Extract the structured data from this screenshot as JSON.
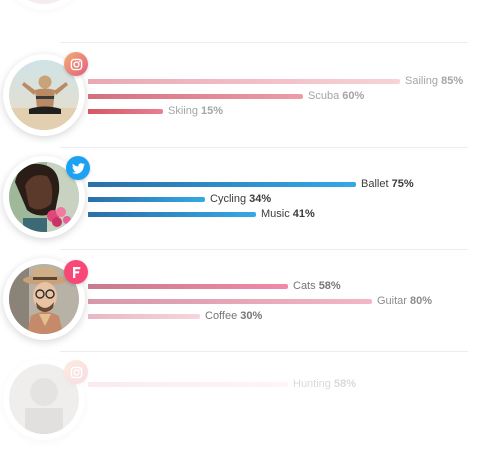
{
  "profiles": [
    {
      "network": "instagram",
      "icon": "instagram-icon",
      "faded": "top",
      "skills": []
    },
    {
      "network": "instagram",
      "icon": "instagram-icon",
      "skills": [
        {
          "name": "Sailing",
          "percent": 85,
          "percent_label": "85%",
          "gradient": [
            "#e9a8b2",
            "#f7d3d6"
          ]
        },
        {
          "name": "Scuba",
          "percent": 60,
          "percent_label": "60%",
          "gradient": [
            "#d4707e",
            "#ec9da8"
          ]
        },
        {
          "name": "Skiing",
          "percent": 15,
          "percent_label": "15%",
          "gradient": [
            "#d85565",
            "#e88090"
          ]
        }
      ]
    },
    {
      "network": "twitter",
      "icon": "twitter-icon",
      "skills": [
        {
          "name": "Ballet",
          "percent": 75,
          "percent_label": "75%",
          "gradient": [
            "#2a6fa8",
            "#34a8e6"
          ]
        },
        {
          "name": "Cycling",
          "percent": 34,
          "percent_label": "34%",
          "gradient": [
            "#2a6fa8",
            "#34a8e6"
          ]
        },
        {
          "name": "Music",
          "percent": 41,
          "percent_label": "41%",
          "gradient": [
            "#2a6fa8",
            "#34a8e6"
          ]
        }
      ]
    },
    {
      "network": "foursquare",
      "icon": "foursquare-icon",
      "skills": [
        {
          "name": "Cats",
          "percent": 58,
          "percent_label": "58%",
          "gradient": [
            "#c87b8e",
            "#f08aa8"
          ]
        },
        {
          "name": "Guitar",
          "percent": 80,
          "percent_label": "80%",
          "gradient": [
            "#d697a8",
            "#f3b6c6"
          ]
        },
        {
          "name": "Coffee",
          "percent": 30,
          "percent_label": "30%",
          "gradient": [
            "#e8b8c3",
            "#f6d5dd"
          ]
        }
      ]
    },
    {
      "network": "instagram",
      "icon": "instagram-icon",
      "faded": "bottom",
      "skills": [
        {
          "name": "Hunting",
          "percent": 58,
          "percent_label": "58%",
          "gradient": [
            "#e9a8b2",
            "#f7d3d6"
          ]
        }
      ]
    }
  ],
  "colors": {
    "instagram_badge": [
      "#f6ad74",
      "#e0607d"
    ],
    "twitter_badge": "#1da1f2",
    "foursquare_badge": "#f94877"
  }
}
